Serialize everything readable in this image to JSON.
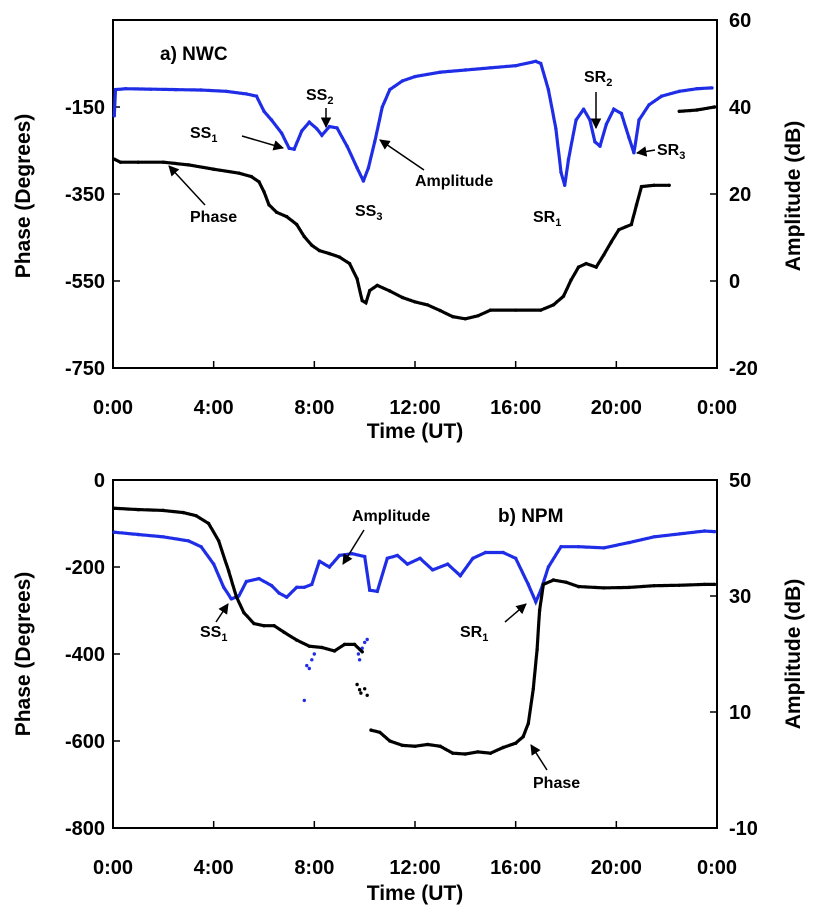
{
  "chart_data": [
    {
      "type": "scatter",
      "title": "a)  NWC",
      "xlabel": "Time (UT)",
      "ylabel_left": "Phase (Degrees)",
      "ylabel_right": "Amplitude (dB)",
      "x_unit": "hours UT",
      "xlim": [
        0,
        24
      ],
      "xticks": [
        "0:00",
        "4:00",
        "8:00",
        "12:00",
        "16:00",
        "20:00",
        "0:00"
      ],
      "ylim_left": [
        -750,
        50
      ],
      "yticks_left": [
        "-750",
        "-550",
        "-350",
        "-150"
      ],
      "ytick_values_left": [
        -750,
        -550,
        -350,
        -150
      ],
      "ylim_right": [
        -20,
        60
      ],
      "yticks_right": [
        "-20",
        "0",
        "20",
        "40",
        "60"
      ],
      "ytick_values_right": [
        -20,
        0,
        20,
        40,
        60
      ],
      "series": [
        {
          "name": "Amplitude",
          "axis": "right",
          "color": "#1f2ee6",
          "points": [
            [
              0.05,
              38
            ],
            [
              0.1,
              44
            ],
            [
              0.5,
              44.2
            ],
            [
              1.5,
              44.1
            ],
            [
              2.5,
              44.0
            ],
            [
              3.5,
              43.9
            ],
            [
              4.5,
              43.6
            ],
            [
              5.3,
              43.0
            ],
            [
              5.7,
              42.5
            ],
            [
              6.0,
              39
            ],
            [
              6.3,
              37
            ],
            [
              6.7,
              34
            ],
            [
              7.0,
              30.5
            ],
            [
              7.2,
              30.3
            ],
            [
              7.5,
              34.5
            ],
            [
              7.8,
              36.5
            ],
            [
              8.1,
              35
            ],
            [
              8.3,
              33.5
            ],
            [
              8.6,
              35.5
            ],
            [
              8.9,
              35.2
            ],
            [
              9.3,
              31
            ],
            [
              9.7,
              26
            ],
            [
              9.95,
              23
            ],
            [
              10.15,
              26
            ],
            [
              10.4,
              32
            ],
            [
              10.7,
              40
            ],
            [
              11.0,
              44
            ],
            [
              11.5,
              46
            ],
            [
              12.0,
              47
            ],
            [
              13.0,
              48
            ],
            [
              14.0,
              48.5
            ],
            [
              15.0,
              49
            ],
            [
              16.0,
              49.5
            ],
            [
              16.8,
              50.5
            ],
            [
              17.0,
              50
            ],
            [
              17.3,
              44
            ],
            [
              17.6,
              35
            ],
            [
              17.8,
              25
            ],
            [
              17.95,
              22
            ],
            [
              18.1,
              28
            ],
            [
              18.4,
              37
            ],
            [
              18.7,
              39.5
            ],
            [
              18.95,
              37
            ],
            [
              19.15,
              32
            ],
            [
              19.35,
              31
            ],
            [
              19.6,
              36
            ],
            [
              19.9,
              39.5
            ],
            [
              20.2,
              38.5
            ],
            [
              20.5,
              33
            ],
            [
              20.7,
              29.5
            ],
            [
              20.9,
              37
            ],
            [
              21.3,
              40.5
            ],
            [
              21.8,
              42.5
            ],
            [
              22.5,
              43.6
            ],
            [
              23.2,
              44.2
            ],
            [
              23.8,
              44.4
            ]
          ]
        },
        {
          "name": "Phase",
          "axis": "left",
          "color": "#000000",
          "points": [
            [
              0.05,
              -270
            ],
            [
              0.3,
              -277
            ],
            [
              1,
              -277
            ],
            [
              2,
              -277
            ],
            [
              3,
              -283
            ],
            [
              4,
              -293
            ],
            [
              5,
              -302
            ],
            [
              5.5,
              -310
            ],
            [
              5.8,
              -322
            ],
            [
              6.0,
              -345
            ],
            [
              6.2,
              -375
            ],
            [
              6.5,
              -392
            ],
            [
              6.9,
              -402
            ],
            [
              7.3,
              -420
            ],
            [
              7.6,
              -448
            ],
            [
              7.9,
              -468
            ],
            [
              8.2,
              -480
            ],
            [
              8.6,
              -487
            ],
            [
              9.0,
              -495
            ],
            [
              9.4,
              -510
            ],
            [
              9.7,
              -545
            ],
            [
              9.9,
              -595
            ],
            [
              10.05,
              -600
            ],
            [
              10.2,
              -572
            ],
            [
              10.5,
              -560
            ],
            [
              11,
              -573
            ],
            [
              11.5,
              -588
            ],
            [
              12,
              -598
            ],
            [
              12.5,
              -605
            ],
            [
              13,
              -618
            ],
            [
              13.5,
              -632
            ],
            [
              14,
              -637
            ],
            [
              14.5,
              -630
            ],
            [
              15,
              -617
            ],
            [
              16,
              -617
            ],
            [
              17,
              -617
            ],
            [
              17.5,
              -605
            ],
            [
              17.9,
              -585
            ],
            [
              18.2,
              -548
            ],
            [
              18.5,
              -518
            ],
            [
              18.8,
              -510
            ],
            [
              19.2,
              -518
            ],
            [
              19.5,
              -490
            ],
            [
              19.8,
              -460
            ],
            [
              20.1,
              -432
            ],
            [
              20.6,
              -420
            ],
            [
              20.8,
              -375
            ],
            [
              21.0,
              -333
            ],
            [
              21.5,
              -330
            ],
            [
              22.1,
              -330
            ]
          ]
        },
        {
          "name": "Phase-segment",
          "axis": "left",
          "color": "#000000",
          "points": [
            [
              22.5,
              -160
            ],
            [
              23.2,
              -157
            ],
            [
              23.9,
              -150
            ]
          ]
        }
      ],
      "annotations": [
        {
          "text": "SS",
          "sub": "1"
        },
        {
          "text": "SS",
          "sub": "2"
        },
        {
          "text": "SS",
          "sub": "3"
        },
        {
          "text": "Amplitude"
        },
        {
          "text": "Phase"
        },
        {
          "text": "SR",
          "sub": "1"
        },
        {
          "text": "SR",
          "sub": "2"
        },
        {
          "text": "SR",
          "sub": "3"
        }
      ]
    },
    {
      "type": "scatter",
      "title": "b)  NPM",
      "xlabel": "Time (UT)",
      "ylabel_left": "Phase (Degrees)",
      "ylabel_right": "Amplitude (dB)",
      "x_unit": "hours UT",
      "xlim": [
        0,
        24
      ],
      "xticks": [
        "0:00",
        "4:00",
        "8:00",
        "12:00",
        "16:00",
        "20:00",
        "0:00"
      ],
      "ylim_left": [
        -800,
        0
      ],
      "yticks_left": [
        "-800",
        "-600",
        "-400",
        "-200",
        "0"
      ],
      "ytick_values_left": [
        -800,
        -600,
        -400,
        -200,
        0
      ],
      "ylim_right": [
        -10,
        50
      ],
      "yticks_right": [
        "-10",
        "10",
        "30",
        "50"
      ],
      "ytick_values_right": [
        -10,
        10,
        30,
        50
      ],
      "series": [
        {
          "name": "Amplitude",
          "axis": "right",
          "color": "#1f2ee6",
          "points": [
            [
              0.05,
              41
            ],
            [
              1,
              40.6
            ],
            [
              2,
              40.2
            ],
            [
              3,
              39.5
            ],
            [
              3.5,
              38.5
            ],
            [
              4,
              35.5
            ],
            [
              4.4,
              31.5
            ],
            [
              4.7,
              29.5
            ],
            [
              5.0,
              30
            ],
            [
              5.3,
              32.5
            ],
            [
              5.8,
              33
            ],
            [
              6.3,
              31.8
            ],
            [
              6.6,
              30.5
            ],
            [
              6.9,
              29.8
            ],
            [
              7.3,
              31.5
            ],
            [
              7.6,
              31.5
            ],
            [
              7.9,
              32
            ],
            [
              8.2,
              36
            ],
            [
              8.6,
              35
            ],
            [
              9,
              37
            ],
            [
              9.5,
              37.3
            ],
            [
              10,
              36.8
            ],
            [
              10.2,
              31
            ],
            [
              10.5,
              30.8
            ],
            [
              10.9,
              36.5
            ],
            [
              11.3,
              37
            ],
            [
              11.7,
              35.5
            ],
            [
              12.2,
              36.5
            ],
            [
              12.7,
              34.5
            ],
            [
              13.3,
              35.5
            ],
            [
              13.8,
              33.5
            ],
            [
              14.3,
              36.5
            ],
            [
              14.8,
              37.5
            ],
            [
              15.5,
              37.5
            ],
            [
              16,
              36.5
            ],
            [
              16.5,
              32
            ],
            [
              16.8,
              29
            ],
            [
              17.0,
              31
            ],
            [
              17.3,
              35
            ],
            [
              17.8,
              38.5
            ],
            [
              18.5,
              38.5
            ],
            [
              19.5,
              38.3
            ],
            [
              20.5,
              39.2
            ],
            [
              21.5,
              40.2
            ],
            [
              22.5,
              40.7
            ],
            [
              23.5,
              41.2
            ],
            [
              23.9,
              41.1
            ]
          ]
        },
        {
          "name": "Amplitude-scatter",
          "axis": "right",
          "color": "#1f2ee6",
          "points": [
            [
              7.6,
              12
            ],
            [
              7.7,
              18
            ],
            [
              7.9,
              19
            ],
            [
              8.0,
              20
            ],
            [
              7.8,
              17.5
            ],
            [
              9.75,
              20
            ],
            [
              9.9,
              21
            ],
            [
              10.0,
              22
            ],
            [
              10.1,
              22.5
            ],
            [
              9.8,
              19
            ]
          ]
        },
        {
          "name": "Phase",
          "axis": "left",
          "color": "#000000",
          "points": [
            [
              0.05,
              -65
            ],
            [
              1,
              -68
            ],
            [
              2,
              -70
            ],
            [
              2.8,
              -75
            ],
            [
              3.3,
              -82
            ],
            [
              3.8,
              -100
            ],
            [
              4.2,
              -140
            ],
            [
              4.6,
              -210
            ],
            [
              4.9,
              -268
            ],
            [
              5.2,
              -305
            ],
            [
              5.6,
              -330
            ],
            [
              6.0,
              -335
            ],
            [
              6.4,
              -335
            ],
            [
              6.8,
              -350
            ],
            [
              7.3,
              -368
            ],
            [
              7.8,
              -382
            ],
            [
              8.3,
              -385
            ],
            [
              8.8,
              -393
            ],
            [
              9.2,
              -378
            ],
            [
              9.6,
              -378
            ],
            [
              9.9,
              -395
            ]
          ]
        },
        {
          "name": "Phase-segment",
          "axis": "left",
          "color": "#000000",
          "points": [
            [
              10.25,
              -575
            ],
            [
              10.6,
              -580
            ],
            [
              11,
              -600
            ],
            [
              11.5,
              -610
            ],
            [
              12,
              -612
            ],
            [
              12.5,
              -608
            ],
            [
              13,
              -612
            ],
            [
              13.5,
              -628
            ],
            [
              14,
              -630
            ],
            [
              14.5,
              -625
            ],
            [
              15,
              -628
            ],
            [
              15.5,
              -615
            ],
            [
              16,
              -605
            ],
            [
              16.3,
              -590
            ],
            [
              16.5,
              -560
            ],
            [
              16.7,
              -480
            ],
            [
              16.85,
              -390
            ],
            [
              16.95,
              -300
            ],
            [
              17.1,
              -240
            ],
            [
              17.5,
              -230
            ],
            [
              18,
              -235
            ],
            [
              18.5,
              -245
            ],
            [
              19.5,
              -248
            ],
            [
              20.5,
              -247
            ],
            [
              21.5,
              -243
            ],
            [
              22.5,
              -242
            ],
            [
              23.5,
              -240
            ],
            [
              23.9,
              -240
            ]
          ]
        },
        {
          "name": "Phase-scatter",
          "axis": "left",
          "color": "#000000",
          "points": [
            [
              9.7,
              -470
            ],
            [
              9.85,
              -490
            ],
            [
              10.0,
              -480
            ],
            [
              10.1,
              -495
            ],
            [
              9.8,
              -482
            ]
          ]
        }
      ],
      "annotations": [
        {
          "text": "Amplitude"
        },
        {
          "text": "SS",
          "sub": "1"
        },
        {
          "text": "SR",
          "sub": "1"
        },
        {
          "text": "Phase"
        }
      ]
    }
  ]
}
